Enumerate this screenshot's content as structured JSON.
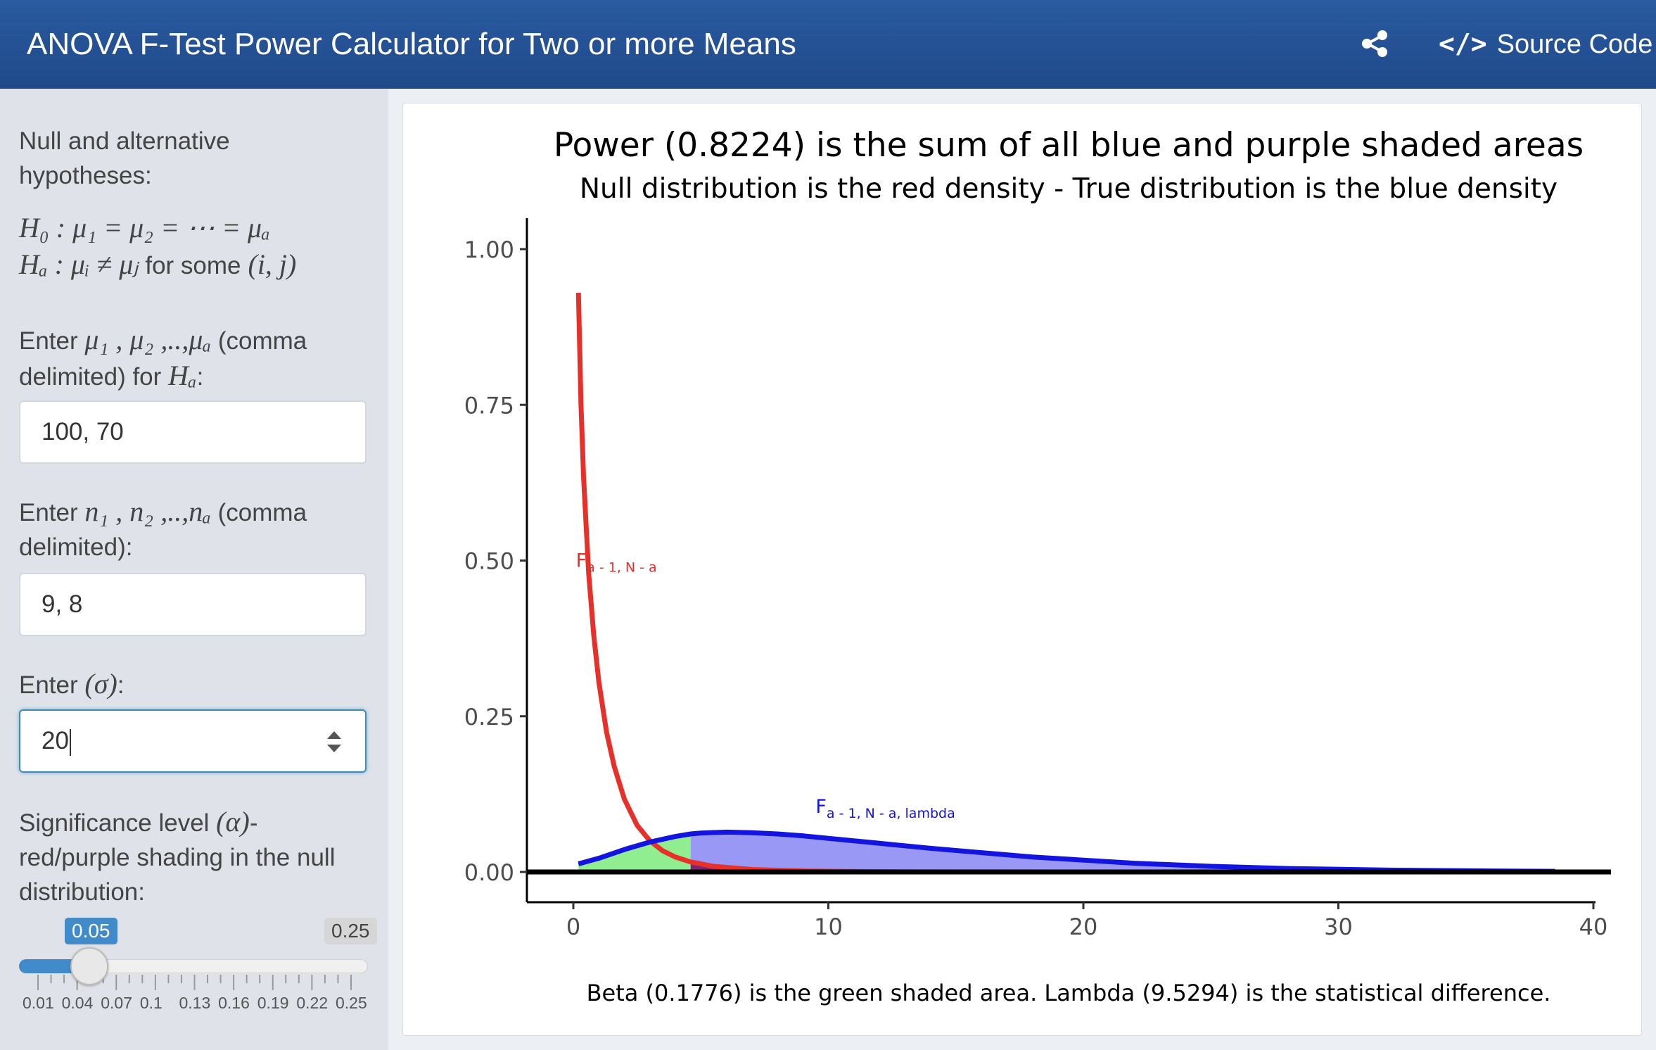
{
  "header": {
    "title": "ANOVA F-Test Power Calculator for Two or more Means",
    "source_code_label": "Source Code",
    "icons": {
      "share": "share-icon",
      "code": "code-icon"
    },
    "colors": {
      "bar": "#1f4a8a"
    }
  },
  "sidebar": {
    "hypotheses_label": "Null and alternative hypotheses:",
    "h0": "H₀ : μ₁ = μ₂ = ⋯ = μₐ",
    "ha_math": "Hₐ : μᵢ ≠ μⱼ",
    "ha_text": "for some",
    "ha_pair": "(i, j)",
    "means_label_pre": "Enter",
    "means_symbols": "μ₁ , μ₂ ,..,μₐ",
    "means_label_post": "(comma delimited) for",
    "means_label_ha": "Hₐ",
    "means_value": "100, 70",
    "ns_label_pre": "Enter",
    "ns_symbols": "n₁ , n₂ ,..,nₐ",
    "ns_label_post": "(comma delimited):",
    "ns_value": "9, 8",
    "sigma_label_pre": "Enter",
    "sigma_symbol": "(σ)",
    "sigma_label_post": ":",
    "sigma_value": "20",
    "alpha_label_pre": "Significance level",
    "alpha_symbol": "(α)",
    "alpha_label_post": "- red/purple shading in the null distribution:",
    "alpha_slider": {
      "value_label": "0.05",
      "max_label": "0.25",
      "value": 0.05,
      "min": 0.01,
      "max": 0.25,
      "ticks": [
        "0.01",
        "0.04",
        "0.07",
        "0.1",
        "0.13",
        "0.16",
        "0.19",
        "0.22",
        "0.25"
      ]
    }
  },
  "chart_data": {
    "type": "area",
    "title": "Power (0.8224) is the sum of all blue and purple shaded areas",
    "subtitle": "Null distribution is the red density - True distribution is the blue density",
    "caption": "Beta (0.1776) is the green shaded area. Lambda (9.5294) is the statistical difference.",
    "xlim": [
      0,
      40
    ],
    "ylim": [
      0,
      1
    ],
    "x_ticks": [
      "0",
      "10",
      "20",
      "30",
      "40"
    ],
    "y_ticks": [
      "0.00",
      "0.25",
      "0.50",
      "0.75",
      "1.00"
    ],
    "grid": false,
    "series": [
      {
        "name": "Fa - 1, N - a",
        "color": "#e8302a",
        "x": [
          0.2,
          0.3,
          0.4,
          0.6,
          0.8,
          1.0,
          1.3,
          1.6,
          2.0,
          2.5,
          3.0,
          3.5,
          4.0,
          4.6,
          5.5,
          7,
          9,
          12,
          15,
          20
        ],
        "y": [
          0.93,
          0.75,
          0.635,
          0.48,
          0.38,
          0.305,
          0.225,
          0.17,
          0.117,
          0.075,
          0.05,
          0.034,
          0.024,
          0.016,
          0.009,
          0.004,
          0.0015,
          0.0004,
          0.0001,
          0.0
        ]
      },
      {
        "name": "Fa - 1, N - a, lambda",
        "color": "#1414e0",
        "x": [
          0.2,
          1,
          2,
          3,
          4,
          4.6,
          5,
          6,
          7,
          8,
          9,
          10,
          12,
          14,
          16,
          18,
          20,
          22,
          25,
          28,
          32,
          36,
          38.5
        ],
        "y": [
          0.013,
          0.022,
          0.036,
          0.048,
          0.057,
          0.061,
          0.0625,
          0.064,
          0.063,
          0.061,
          0.058,
          0.054,
          0.046,
          0.038,
          0.031,
          0.024,
          0.019,
          0.014,
          0.009,
          0.0055,
          0.003,
          0.0015,
          0.001
        ]
      }
    ],
    "critical_value": 4.6,
    "shading": {
      "beta_color": "#90ee90",
      "power_color": "#9999f5",
      "alpha_color": "#7a0f5a"
    },
    "annotations": [
      {
        "label_main": "F",
        "label_sub": "a - 1, N - a",
        "x": 0.1,
        "y": 0.49,
        "color": "#e8302a"
      },
      {
        "label_main": "F",
        "label_sub": "a - 1, N - a, lambda",
        "x": 9.5,
        "y": 0.095,
        "color": "#1414e0"
      }
    ]
  }
}
